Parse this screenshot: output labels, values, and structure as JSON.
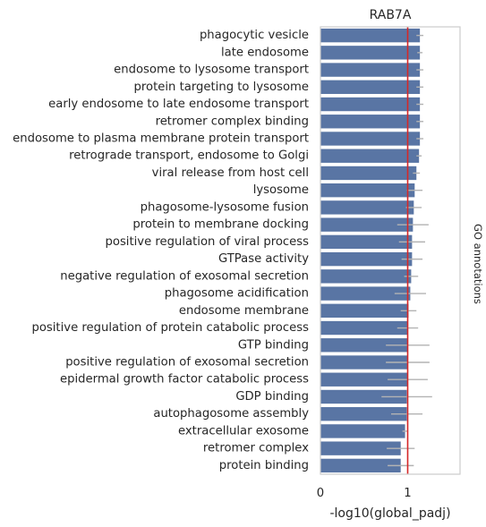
{
  "chart_data": {
    "type": "bar",
    "orientation": "horizontal",
    "title": "RAB7A",
    "xlabel": "-log10(global_padj)",
    "side_label": "GO annotations",
    "xlim": [
      0,
      1.6
    ],
    "xticks": [
      0,
      1
    ],
    "xtick_labels": [
      "0",
      "1"
    ],
    "reference_line": 1.0,
    "grid": false,
    "colors": {
      "bar": "#5975a4",
      "error": "#b3b3b3",
      "reference": "#d62728",
      "frame": "#cccccc"
    },
    "categories": [
      "phagocytic vesicle",
      "late endosome",
      "endosome to lysosome transport",
      "protein targeting to lysosome",
      "early endosome to late endosome transport",
      "retromer complex binding",
      "endosome to plasma membrane protein transport",
      "retrograde transport, endosome to Golgi",
      "viral release from host cell",
      "lysosome",
      "phagosome-lysosome fusion",
      "protein to membrane docking",
      "positive regulation of viral process",
      "GTPase activity",
      "negative regulation of exosomal secretion",
      "phagosome acidification",
      "endosome membrane",
      "positive regulation of protein catabolic process",
      "GTP binding",
      "positive regulation of exosomal secretion",
      "epidermal growth factor catabolic process",
      "GDP binding",
      "autophagosome assembly",
      "extracellular exosome",
      "retromer complex",
      "protein binding"
    ],
    "values": [
      1.14,
      1.14,
      1.14,
      1.14,
      1.14,
      1.14,
      1.14,
      1.13,
      1.1,
      1.08,
      1.07,
      1.06,
      1.05,
      1.05,
      1.04,
      1.03,
      1.01,
      1.0,
      1.0,
      1.0,
      1.0,
      0.99,
      0.99,
      0.97,
      0.92,
      0.92
    ],
    "error": [
      0.04,
      0.03,
      0.04,
      0.04,
      0.04,
      0.04,
      0.04,
      0.03,
      0.04,
      0.09,
      0.09,
      0.18,
      0.15,
      0.12,
      0.08,
      0.18,
      0.09,
      0.12,
      0.25,
      0.25,
      0.23,
      0.29,
      0.18,
      0.03,
      0.16,
      0.15
    ]
  }
}
